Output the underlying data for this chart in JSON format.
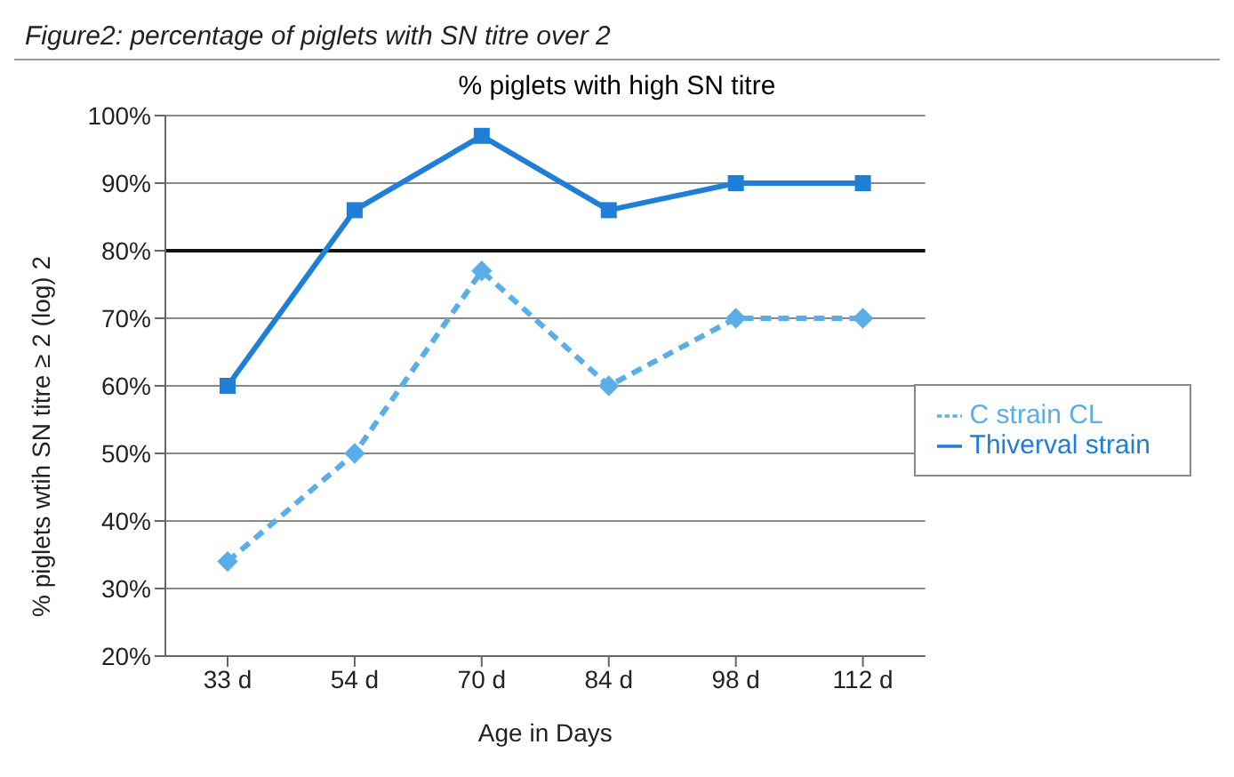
{
  "chart_data": {
    "type": "line",
    "title": "% piglets with high SN titre",
    "annotations": [
      "Figure2: percentage of piglets with SN titre over 2"
    ],
    "xlabel": "Age in Days",
    "ylabel": "% piglets wtih SN titre ≥ 2 (log) 2",
    "categories": [
      "33 d",
      "54 d",
      "70 d",
      "84 d",
      "98 d",
      "112 d"
    ],
    "series": [
      {
        "name": "C strain CL",
        "color": "#5aaee8",
        "line_style": "dashed",
        "marker": "diamond",
        "values": [
          34,
          50,
          77,
          60,
          70,
          70
        ]
      },
      {
        "name": "Thiverval strain",
        "color": "#1f7fd6",
        "line_style": "solid",
        "marker": "square",
        "values": [
          60,
          86,
          97,
          86,
          90,
          90
        ]
      }
    ],
    "ylim": [
      20,
      100
    ],
    "yticks": [
      {
        "value": 20,
        "label": "20%"
      },
      {
        "value": 30,
        "label": "30%"
      },
      {
        "value": 40,
        "label": "40%"
      },
      {
        "value": 50,
        "label": "50%"
      },
      {
        "value": 60,
        "label": "60%"
      },
      {
        "value": 70,
        "label": "70%"
      },
      {
        "value": 80,
        "label": "80%"
      },
      {
        "value": 90,
        "label": "90%"
      },
      {
        "value": 100,
        "label": "100%"
      }
    ],
    "ref_lines": [
      {
        "axis": "y",
        "value": 80,
        "color": "#111111"
      }
    ],
    "grid": "y",
    "legend": "right"
  }
}
